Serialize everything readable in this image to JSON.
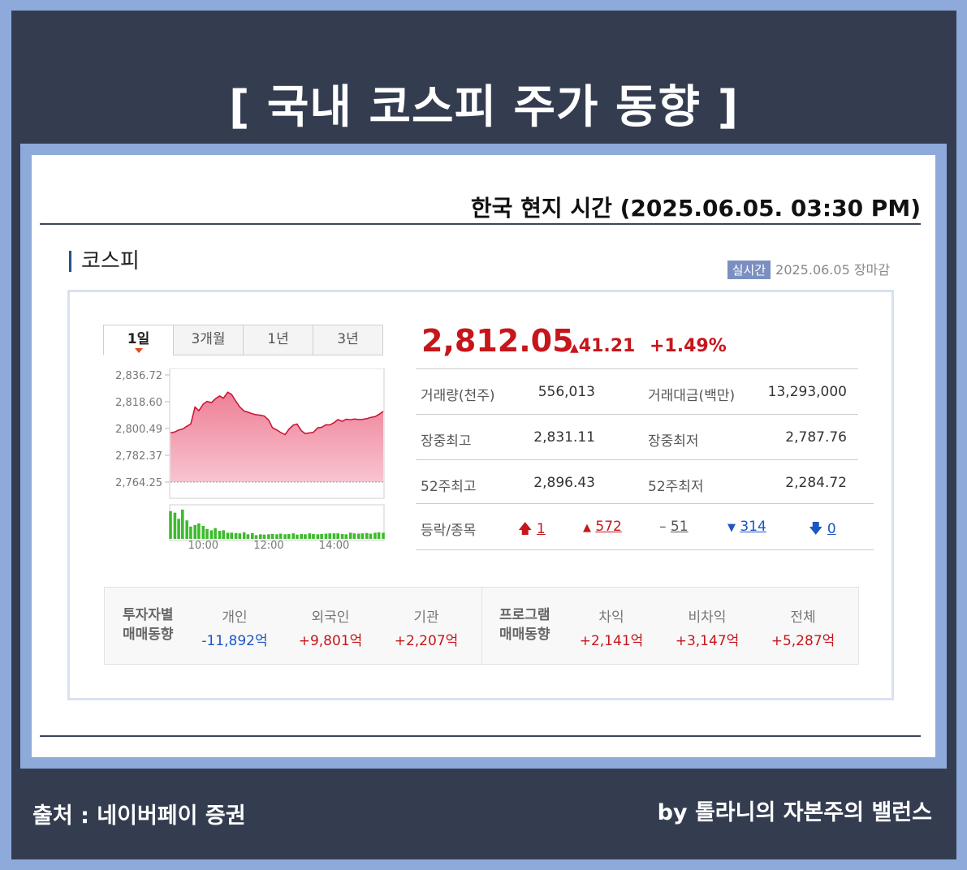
{
  "page": {
    "title": "[ 국내 코스피 주가 동향 ]",
    "local_time": "한국 현지 시간 (2025.06.05. 03:30 PM)",
    "source": "출처 : 네이버페이 증권",
    "byline": "by 톨라니의 자본주의 밸런스"
  },
  "index": {
    "name": "코스피",
    "realtime_badge": "실시간",
    "status": "2025.06.05 장마감",
    "price": "2,812.05",
    "change": "41.21",
    "change_arrow": "▲",
    "change_pct": "+1.49%"
  },
  "tabs": [
    {
      "label": "1일"
    },
    {
      "label": "3개월"
    },
    {
      "label": "1년"
    },
    {
      "label": "3년"
    }
  ],
  "stats": [
    {
      "label1": "거래량(천주)",
      "value1": "556,013",
      "label2": "거래대금(백만)",
      "value2": "13,293,000"
    },
    {
      "label1": "장중최고",
      "value1": "2,831.11",
      "label2": "장중최저",
      "value2": "2,787.76"
    },
    {
      "label1": "52주최고",
      "value1": "2,896.43",
      "label2": "52주최저",
      "value2": "2,284.72"
    }
  ],
  "updown": {
    "label": "등락/종목",
    "upper_limit": "1",
    "rise": "572",
    "flat": "51",
    "fall": "314",
    "lower_limit": "0",
    "icons": {
      "upper_limit": "arrow-up-icon",
      "rise": "triangle-up-icon",
      "flat": "dash-icon",
      "fall": "triangle-down-icon",
      "lower_limit": "arrow-down-icon"
    }
  },
  "investors": {
    "heading_line1": "투자자별",
    "heading_line2": "매매동향",
    "items": [
      {
        "label": "개인",
        "value": "-11,892억"
      },
      {
        "label": "외국인",
        "value": "+9,801억"
      },
      {
        "label": "기관",
        "value": "+2,207억"
      }
    ]
  },
  "program": {
    "heading_line1": "프로그램",
    "heading_line2": "매매동향",
    "items": [
      {
        "label": "차익",
        "value": "+2,141억"
      },
      {
        "label": "비차익",
        "value": "+3,147억"
      },
      {
        "label": "전체",
        "value": "+5,287억"
      }
    ]
  },
  "colors": {
    "up": "#c6161c",
    "down": "#1a56c4",
    "area_fill": "#f4a4b4",
    "volume": "#3dbb2c",
    "frame": "#343d50",
    "border": "#8eaadb"
  },
  "chart_data": {
    "type": "area",
    "y_ticks": [
      "2,836.72",
      "2,818.60",
      "2,800.49",
      "2,782.37",
      "2,764.25"
    ],
    "x_ticks": [
      "10:00",
      "12:00",
      "14:00"
    ],
    "ylim": [
      2764.25,
      2836.72
    ],
    "x_start": "09:00",
    "x_end": "15:30",
    "x_ticks_minutes": [
      60,
      180,
      300
    ],
    "series": [
      {
        "x": [
          0,
          8,
          15,
          22,
          30,
          37,
          45,
          52,
          60,
          67,
          75,
          82,
          90,
          97,
          105,
          112,
          120,
          127,
          135,
          142,
          150,
          157,
          165,
          172,
          180,
          187,
          195,
          202,
          210,
          217,
          225,
          232,
          240,
          247,
          255,
          262,
          270,
          277,
          285,
          292,
          300,
          307,
          315,
          322,
          330,
          337,
          345,
          352,
          360,
          367,
          375,
          382,
          390
        ],
        "values": [
          2797.5,
          2798.2,
          2799.5,
          2800.1,
          2802.0,
          2803.5,
          2815.0,
          2812.5,
          2817.0,
          2818.8,
          2818.0,
          2820.5,
          2822.5,
          2821.0,
          2825.1,
          2823.6,
          2818.9,
          2815.1,
          2812.3,
          2811.5,
          2810.5,
          2809.8,
          2809.5,
          2808.9,
          2806.2,
          2801.0,
          2799.5,
          2797.8,
          2796.3,
          2800.0,
          2802.8,
          2803.5,
          2799.0,
          2797.0,
          2797.5,
          2797.9,
          2801.0,
          2801.3,
          2803.0,
          2802.9,
          2804.5,
          2806.5,
          2805.3,
          2806.8,
          2806.4,
          2806.9,
          2806.5,
          2806.7,
          2807.2,
          2808.0,
          2808.5,
          2810.0,
          2812.05
        ]
      }
    ],
    "volume": [
      9,
      8.5,
      6.5,
      9.5,
      6,
      4,
      4.5,
      5,
      4.2,
      3.2,
      2.8,
      3.5,
      2.6,
      2.8,
      2,
      2,
      1.9,
      1.8,
      2.1,
      1.5,
      1.9,
      1.2,
      1.5,
      1.4,
      1.5,
      1.6,
      1.5,
      1.7,
      1.5,
      1.6,
      1.8,
      1.4,
      1.6,
      1.5,
      1.8,
      1.6,
      1.5,
      1.6,
      1.7,
      1.8,
      1.8,
      1.8,
      1.6,
      1.5,
      2.0,
      1.8,
      1.7,
      1.8,
      1.9,
      1.7,
      2.0,
      2.1,
      2.0
    ]
  }
}
